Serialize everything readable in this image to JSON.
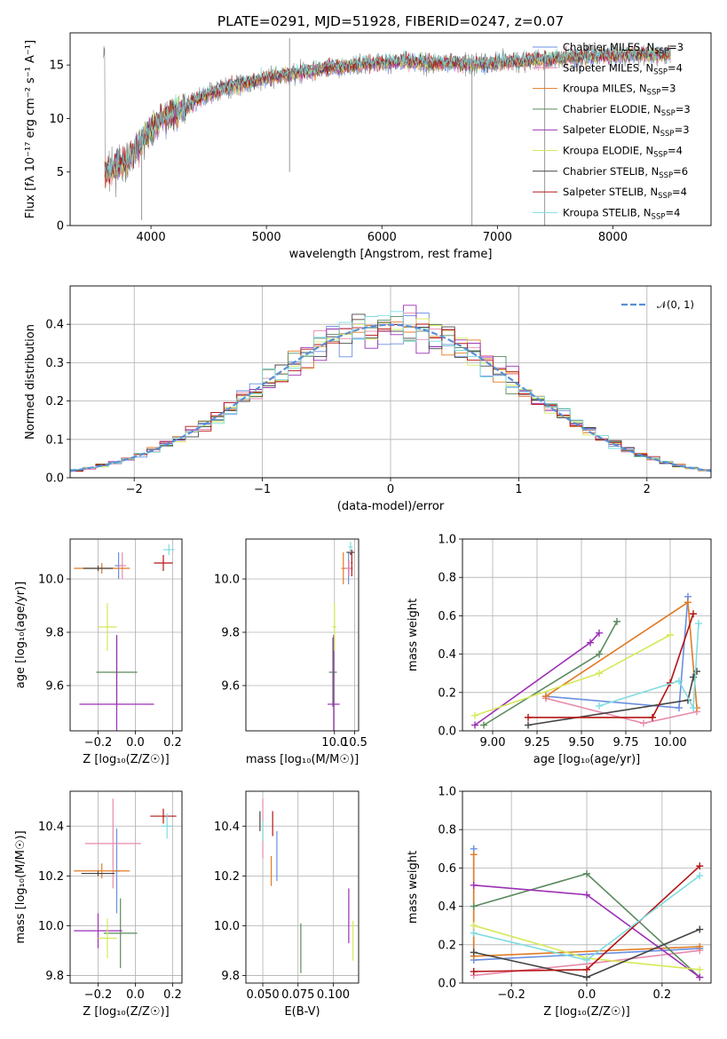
{
  "figure_title": "PLATE=0291, MJD=51928, FIBERID=0247, z=0.07",
  "colors": {
    "chabrier_miles": "#6a8fe0",
    "salpeter_miles": "#e88aad",
    "kroupa_miles": "#e07b25",
    "chabrier_elodie": "#5b8a5e",
    "salpeter_elodie": "#9c2fb5",
    "kroupa_elodie": "#d6e85a",
    "chabrier_stelib": "#444444",
    "salpeter_stelib": "#b51515",
    "kroupa_stelib": "#7fdce0",
    "grid": "#b0b0b0",
    "data_spectrum": "#808080",
    "normal_curve": "#5a8fd4"
  },
  "chart_data": [
    {
      "id": "spectrum",
      "type": "line",
      "title": "PLATE=0291, MJD=51928, FIBERID=0247, z=0.07",
      "xlabel": "wavelength [Angstrom, rest frame]",
      "ylabel": "Flux [f_λ 10^-17 erg cm^-2 s^-1 A^-1]",
      "xlim": [
        3300,
        8850
      ],
      "ylim": [
        0,
        18
      ],
      "xticks": [
        4000,
        5000,
        6000,
        7000,
        8000
      ],
      "yticks": [
        0,
        5,
        10,
        15
      ],
      "grid": false,
      "legend_position": "top-right",
      "legend": [
        "Chabrier MILES, N_SSP=3",
        "Salpeter MILES, N_SSP=4",
        "Kroupa MILES, N_SSP=3",
        "Chabrier ELODIE, N_SSP=3",
        "Salpeter ELODIE, N_SSP=3",
        "Kroupa ELODIE, N_SSP=4",
        "Chabrier STELIB, N_SSP=6",
        "Salpeter STELIB, N_SSP=4",
        "Kroupa STELIB, N_SSP=4"
      ],
      "continuum": {
        "x": [
          3600,
          3700,
          3800,
          3900,
          4000,
          4100,
          4200,
          4300,
          4400,
          4500,
          4700,
          5000,
          5300,
          5600,
          5900,
          6200,
          6500,
          6800,
          7100,
          7400,
          7700,
          8000,
          8300,
          8500
        ],
        "y": [
          5.0,
          5.5,
          6.0,
          7.5,
          9.0,
          10.0,
          10.5,
          11.0,
          11.8,
          12.3,
          13.0,
          13.8,
          14.3,
          14.8,
          15.1,
          15.3,
          15.2,
          15.1,
          15.3,
          15.5,
          15.8,
          15.9,
          16.0,
          16.0
        ]
      },
      "spikes": [
        {
          "x": 5200,
          "low": 5.0,
          "high": 17.5
        },
        {
          "x": 6780,
          "low": 0.0,
          "high": 16.0
        },
        {
          "x": 7410,
          "low": 0.0,
          "high": 15.0
        },
        {
          "x": 3920,
          "low": 0.5,
          "high": 8.0
        }
      ]
    },
    {
      "id": "residuals",
      "type": "histogram",
      "xlabel": "(data-model)/error",
      "ylabel": "Normed distribution",
      "xlim": [
        -2.5,
        2.5
      ],
      "ylim": [
        0,
        0.5
      ],
      "xticks": [
        -2,
        -1,
        0,
        1,
        2
      ],
      "yticks": [
        0.0,
        0.1,
        0.2,
        0.3,
        0.4
      ],
      "grid": true,
      "legend_position": "top-right",
      "legend": [
        "𝒩(0, 1)"
      ],
      "bin_width": 0.1,
      "bin_start": -2.5,
      "bins": 50,
      "reference_curve": "standard normal pdf"
    },
    {
      "id": "age_vs_Z",
      "type": "scatter",
      "xlabel": "Z [log10(Z/Z☉)]",
      "ylabel": "age  [log10(age/yr)]",
      "xlim": [
        -0.35,
        0.25
      ],
      "ylim": [
        9.43,
        10.15
      ],
      "xticks": [
        -0.2,
        0.0,
        0.2
      ],
      "yticks": [
        9.6,
        9.8,
        10.0
      ],
      "grid": true,
      "points": [
        {
          "model": "chabrier_miles",
          "x": -0.09,
          "y": 10.05,
          "xerr": 0.02,
          "yerr": 0.05
        },
        {
          "model": "salpeter_miles",
          "x": -0.07,
          "y": 10.05,
          "xerr": 0.02,
          "yerr": 0.05
        },
        {
          "model": "kroupa_miles",
          "x": -0.18,
          "y": 10.04,
          "xerr": 0.15,
          "yerr": 0.02
        },
        {
          "model": "chabrier_elodie",
          "x": -0.1,
          "y": 9.65,
          "xerr": 0.11,
          "yerr": 0.13
        },
        {
          "model": "salpeter_elodie",
          "x": -0.1,
          "y": 9.53,
          "xerr": 0.2,
          "yerr": 0.26
        },
        {
          "model": "kroupa_elodie",
          "x": -0.15,
          "y": 9.82,
          "xerr": 0.05,
          "yerr": 0.09
        },
        {
          "model": "chabrier_stelib",
          "x": -0.2,
          "y": 10.04,
          "xerr": 0.08,
          "yerr": 0.01
        },
        {
          "model": "salpeter_stelib",
          "x": 0.15,
          "y": 10.06,
          "xerr": 0.05,
          "yerr": 0.03
        },
        {
          "model": "kroupa_stelib",
          "x": 0.18,
          "y": 10.11,
          "xerr": 0.03,
          "yerr": 0.02
        }
      ]
    },
    {
      "id": "age_vs_mass",
      "type": "scatter",
      "xlabel": "mass [log10(M/M☉)]",
      "xlim": [
        7.8,
        10.6
      ],
      "ylim": [
        9.43,
        10.15
      ],
      "xticks": [
        10.0,
        10.5
      ],
      "yticks": [
        9.6,
        9.8,
        10.0
      ],
      "grid": true,
      "points": [
        {
          "model": "chabrier_miles",
          "x": 10.35,
          "y": 10.04,
          "xerr": 0.05,
          "yerr": 0.06
        },
        {
          "model": "salpeter_miles",
          "x": 10.36,
          "y": 10.04,
          "xerr": 0.1,
          "yerr": 0.03
        },
        {
          "model": "kroupa_miles",
          "x": 10.22,
          "y": 10.04,
          "xerr": 0.05,
          "yerr": 0.06
        },
        {
          "model": "chabrier_elodie",
          "x": 9.96,
          "y": 9.65,
          "xerr": 0.1,
          "yerr": 0.13
        },
        {
          "model": "salpeter_elodie",
          "x": 9.98,
          "y": 9.53,
          "xerr": 0.15,
          "yerr": 0.26
        },
        {
          "model": "kroupa_elodie",
          "x": 10.0,
          "y": 9.82,
          "xerr": 0.05,
          "yerr": 0.09
        },
        {
          "model": "chabrier_stelib",
          "x": 10.4,
          "y": 10.1,
          "xerr": 0.1,
          "yerr": 0.01
        },
        {
          "model": "salpeter_stelib",
          "x": 10.43,
          "y": 10.06,
          "xerr": 0.02,
          "yerr": 0.05
        },
        {
          "model": "kroupa_stelib",
          "x": 10.4,
          "y": 10.12,
          "xerr": 0.05,
          "yerr": 0.02
        }
      ]
    },
    {
      "id": "weight_vs_age",
      "type": "line",
      "xlabel": "age  [log10(age/yr)]",
      "ylabel": "mass weight",
      "xlim": [
        8.83,
        10.23
      ],
      "ylim": [
        0,
        1
      ],
      "xticks": [
        9.0,
        9.25,
        9.5,
        9.75,
        10.0
      ],
      "yticks": [
        0.0,
        0.2,
        0.4,
        0.6,
        0.8,
        1.0
      ],
      "grid": true,
      "series": [
        {
          "model": "chabrier_miles",
          "x": [
            9.3,
            10.05,
            10.1
          ],
          "y": [
            0.18,
            0.12,
            0.7
          ]
        },
        {
          "model": "salpeter_miles",
          "x": [
            9.3,
            9.85,
            10.15
          ],
          "y": [
            0.17,
            0.04,
            0.1
          ]
        },
        {
          "model": "kroupa_miles",
          "x": [
            9.3,
            10.1,
            10.15
          ],
          "y": [
            0.18,
            0.67,
            0.12
          ]
        },
        {
          "model": "chabrier_elodie",
          "x": [
            8.95,
            9.6,
            9.7
          ],
          "y": [
            0.03,
            0.4,
            0.57
          ]
        },
        {
          "model": "salpeter_elodie",
          "x": [
            8.9,
            9.55,
            9.6
          ],
          "y": [
            0.03,
            0.46,
            0.51
          ]
        },
        {
          "model": "kroupa_elodie",
          "x": [
            8.9,
            9.6,
            10.0
          ],
          "y": [
            0.08,
            0.3,
            0.5
          ]
        },
        {
          "model": "chabrier_stelib",
          "x": [
            9.2,
            10.1,
            10.13,
            10.15
          ],
          "y": [
            0.03,
            0.16,
            0.28,
            0.31
          ]
        },
        {
          "model": "salpeter_stelib",
          "x": [
            9.2,
            9.9,
            10.0,
            10.13
          ],
          "y": [
            0.07,
            0.07,
            0.25,
            0.61
          ]
        },
        {
          "model": "kroupa_stelib",
          "x": [
            9.6,
            10.05,
            10.13,
            10.16
          ],
          "y": [
            0.13,
            0.26,
            0.12,
            0.56
          ]
        }
      ]
    },
    {
      "id": "mass_vs_Z",
      "type": "scatter",
      "xlabel": "Z [log10(Z/Z☉)]",
      "ylabel": "mass [log10(M/M☉)]",
      "xlim": [
        -0.35,
        0.25
      ],
      "ylim": [
        9.77,
        10.54
      ],
      "xticks": [
        -0.2,
        0.0,
        0.2
      ],
      "yticks": [
        9.8,
        10.0,
        10.2,
        10.4
      ],
      "grid": true,
      "points": [
        {
          "model": "chabrier_miles",
          "x": -0.1,
          "y": 10.22,
          "xerr": 0.02,
          "yerr": 0.17
        },
        {
          "model": "salpeter_miles",
          "x": -0.12,
          "y": 10.33,
          "xerr": 0.15,
          "yerr": 0.18
        },
        {
          "model": "kroupa_miles",
          "x": -0.18,
          "y": 10.22,
          "xerr": 0.15,
          "yerr": 0.03
        },
        {
          "model": "chabrier_elodie",
          "x": -0.08,
          "y": 9.97,
          "xerr": 0.09,
          "yerr": 0.14
        },
        {
          "model": "salpeter_elodie",
          "x": -0.2,
          "y": 9.98,
          "xerr": 0.13,
          "yerr": 0.07
        },
        {
          "model": "kroupa_elodie",
          "x": -0.15,
          "y": 9.95,
          "xerr": 0.05,
          "yerr": 0.08
        },
        {
          "model": "chabrier_stelib",
          "x": -0.2,
          "y": 10.21,
          "xerr": 0.09,
          "yerr": 0.01
        },
        {
          "model": "salpeter_stelib",
          "x": 0.15,
          "y": 10.44,
          "xerr": 0.07,
          "yerr": 0.03
        },
        {
          "model": "kroupa_stelib",
          "x": 0.17,
          "y": 10.4,
          "xerr": 0.03,
          "yerr": 0.05
        }
      ]
    },
    {
      "id": "mass_vs_ebv",
      "type": "scatter",
      "xlabel": "E(B-V)",
      "xlim": [
        0.038,
        0.118
      ],
      "ylim": [
        9.77,
        10.54
      ],
      "xticks": [
        0.05,
        0.075,
        0.1
      ],
      "yticks": [
        9.8,
        10.0,
        10.2,
        10.4
      ],
      "grid": true,
      "points": [
        {
          "model": "chabrier_miles",
          "x": 0.06,
          "y": 10.28,
          "yerr": 0.1
        },
        {
          "model": "salpeter_miles",
          "x": 0.05,
          "y": 10.39,
          "yerr": 0.12
        },
        {
          "model": "kroupa_miles",
          "x": 0.056,
          "y": 10.22,
          "yerr": 0.06
        },
        {
          "model": "chabrier_elodie",
          "x": 0.077,
          "y": 9.91,
          "yerr": 0.1
        },
        {
          "model": "salpeter_elodie",
          "x": 0.111,
          "y": 10.04,
          "yerr": 0.11
        },
        {
          "model": "kroupa_elodie",
          "x": 0.114,
          "y": 9.94,
          "yerr": 0.08
        },
        {
          "model": "chabrier_stelib",
          "x": 0.048,
          "y": 10.42,
          "yerr": 0.04
        },
        {
          "model": "salpeter_stelib",
          "x": 0.057,
          "y": 10.41,
          "yerr": 0.05
        },
        {
          "model": "kroupa_stelib",
          "x": 0.05,
          "y": 10.38,
          "yerr": 0.04
        }
      ]
    },
    {
      "id": "weight_vs_Z",
      "type": "line",
      "xlabel": "Z [log10(Z/Z☉)]",
      "ylabel": "mass weight",
      "xlim": [
        -0.33,
        0.33
      ],
      "ylim": [
        0,
        1
      ],
      "xticks": [
        -0.2,
        0.0,
        0.2
      ],
      "yticks": [
        0.0,
        0.2,
        0.4,
        0.6,
        0.8,
        1.0
      ],
      "grid": true,
      "series": [
        {
          "model": "chabrier_miles",
          "x": [
            -0.3,
            -0.3,
            0.3
          ],
          "y": [
            0.7,
            0.12,
            0.18
          ]
        },
        {
          "model": "salpeter_miles",
          "x": [
            -0.3,
            0.0,
            0.3
          ],
          "y": [
            0.04,
            0.1,
            0.17
          ]
        },
        {
          "model": "kroupa_miles",
          "x": [
            -0.3,
            -0.3,
            0.3
          ],
          "y": [
            0.67,
            0.14,
            0.19
          ]
        },
        {
          "model": "chabrier_elodie",
          "x": [
            -0.3,
            0.0,
            0.3
          ],
          "y": [
            0.4,
            0.57,
            0.03
          ]
        },
        {
          "model": "salpeter_elodie",
          "x": [
            -0.3,
            0.0,
            0.3
          ],
          "y": [
            0.51,
            0.46,
            0.03
          ]
        },
        {
          "model": "kroupa_elodie",
          "x": [
            -0.3,
            0.0,
            0.3
          ],
          "y": [
            0.3,
            0.13,
            0.07
          ]
        },
        {
          "model": "chabrier_stelib",
          "x": [
            -0.3,
            0.0,
            0.3
          ],
          "y": [
            0.16,
            0.03,
            0.28
          ]
        },
        {
          "model": "salpeter_stelib",
          "x": [
            -0.3,
            0.0,
            0.3
          ],
          "y": [
            0.06,
            0.07,
            0.61
          ]
        },
        {
          "model": "kroupa_stelib",
          "x": [
            -0.3,
            0.0,
            0.3
          ],
          "y": [
            0.26,
            0.12,
            0.56
          ]
        }
      ]
    }
  ]
}
